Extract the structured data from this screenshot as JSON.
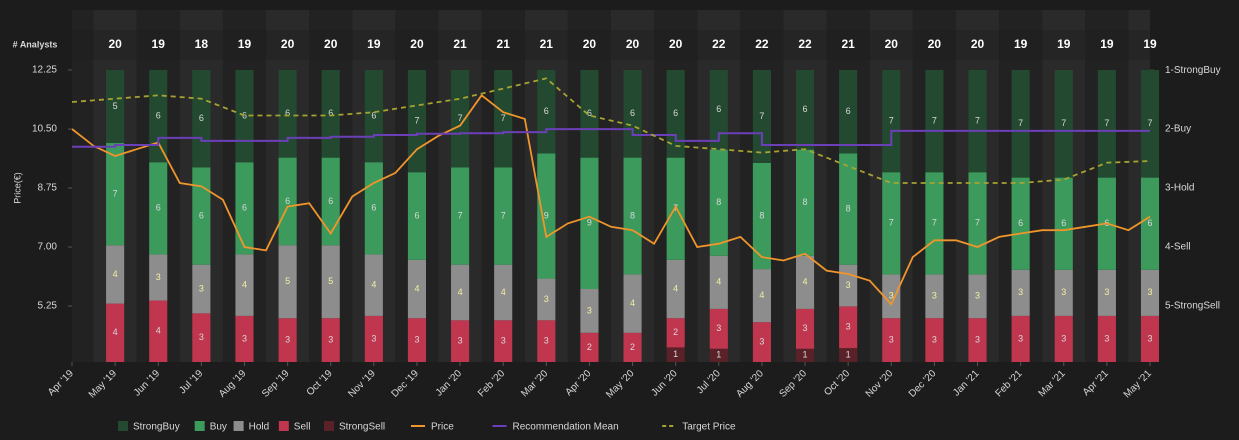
{
  "chart_data": {
    "type": "bar",
    "y_label": "Price(€)",
    "analysts_label": "# Analysts",
    "categories": [
      "Apr '19",
      "May '19",
      "Jun '19",
      "Jul '19",
      "Aug '19",
      "Sep '19",
      "Oct '19",
      "Nov '19",
      "Dec '19",
      "Jan '20",
      "Feb '20",
      "Mar '20",
      "Apr '20",
      "May '20",
      "Jun '20",
      "Jul '20",
      "Aug '20",
      "Sep '20",
      "Oct '20",
      "Nov '20",
      "Dec '20",
      "Jan '21",
      "Feb '21",
      "Mar '21",
      "Apr '21",
      "May '21"
    ],
    "analysts": [
      null,
      20,
      19,
      18,
      19,
      20,
      20,
      19,
      20,
      21,
      21,
      21,
      20,
      20,
      20,
      22,
      22,
      22,
      21,
      20,
      20,
      20,
      19,
      19,
      19,
      19
    ],
    "series": [
      {
        "name": "StrongSell",
        "color": "#5a2228",
        "values": [
          null,
          0,
          0,
          0,
          0,
          0,
          0,
          0,
          0,
          0,
          0,
          0,
          0,
          0,
          1,
          1,
          0,
          1,
          1,
          0,
          0,
          0,
          0,
          0,
          0,
          0
        ]
      },
      {
        "name": "Sell",
        "color": "#c1364f",
        "values": [
          null,
          4,
          4,
          3,
          3,
          3,
          3,
          3,
          3,
          3,
          3,
          3,
          2,
          2,
          2,
          3,
          3,
          3,
          3,
          3,
          3,
          3,
          3,
          3,
          3,
          3
        ]
      },
      {
        "name": "Hold",
        "color": "#8d8d8d",
        "values": [
          null,
          4,
          3,
          3,
          4,
          5,
          5,
          4,
          4,
          4,
          4,
          3,
          3,
          4,
          4,
          4,
          4,
          4,
          3,
          3,
          3,
          3,
          3,
          3,
          3,
          3
        ]
      },
      {
        "name": "Buy",
        "color": "#3c9a5c",
        "values": [
          null,
          7,
          6,
          6,
          6,
          6,
          6,
          6,
          6,
          7,
          7,
          9,
          9,
          8,
          7,
          8,
          8,
          8,
          8,
          7,
          7,
          7,
          6,
          6,
          6,
          6
        ]
      },
      {
        "name": "StrongBuy",
        "color": "#234a30",
        "values": [
          null,
          5,
          6,
          6,
          6,
          6,
          6,
          6,
          7,
          7,
          7,
          6,
          6,
          6,
          6,
          6,
          7,
          6,
          6,
          7,
          7,
          7,
          7,
          7,
          7,
          7
        ]
      }
    ],
    "legend_order": [
      4,
      3,
      2,
      1,
      0
    ],
    "line_series": [
      {
        "name": "Price",
        "color": "#f0952c",
        "dash": false,
        "axis": "y",
        "values": [
          10.5,
          10.0,
          9.7,
          9.9,
          10.1,
          8.9,
          8.8,
          8.4,
          7.0,
          6.9,
          8.2,
          8.3,
          7.4,
          8.5,
          8.9,
          9.2,
          9.9,
          10.3,
          10.6,
          11.5,
          11.0,
          10.8,
          7.3,
          7.7,
          7.9,
          7.6,
          7.5,
          7.1,
          8.2,
          7.0,
          7.1,
          7.3,
          6.7,
          6.6,
          6.8,
          6.3,
          6.2,
          6.0,
          5.3,
          6.7,
          7.2,
          7.2,
          7.0,
          7.3,
          7.4,
          7.5,
          7.5,
          7.6,
          7.7,
          7.5,
          7.9
        ]
      },
      {
        "name": "Recommendation Mean",
        "color": "#6b3fb8",
        "dash": false,
        "axis": "y2",
        "values": [
          2.3,
          2.27,
          2.15,
          2.2,
          2.2,
          2.15,
          2.13,
          2.1,
          2.08,
          2.07,
          2.05,
          2.0,
          2.0,
          2.1,
          2.2,
          2.07,
          2.27,
          2.27,
          2.27,
          2.03,
          2.03,
          2.03,
          2.03,
          2.03,
          2.03,
          2.03
        ]
      },
      {
        "name": "Target Price",
        "color": "#a7a232",
        "dash": true,
        "axis": "y",
        "values": [
          11.3,
          11.4,
          11.5,
          11.4,
          10.9,
          10.9,
          10.9,
          11.0,
          11.2,
          11.4,
          11.7,
          12.0,
          10.9,
          10.6,
          10.0,
          9.9,
          9.8,
          9.9,
          9.4,
          8.9,
          8.9,
          8.9,
          8.9,
          9.0,
          9.5,
          9.55
        ]
      }
    ],
    "ylim": [
      3.59,
      14.03
    ],
    "yticks": [
      {
        "value": 5.25,
        "label": "5.25"
      },
      {
        "value": 7,
        "label": "7.00"
      },
      {
        "value": 8.75,
        "label": "8.75"
      },
      {
        "value": 10.5,
        "label": "10.50"
      },
      12.25
    ],
    "y2lim": [
      5.95,
      -0.02
    ],
    "y2ticks": [
      {
        "value": 1,
        "label": "1-StrongBuy"
      },
      {
        "value": 2,
        "label": "2-Buy"
      },
      {
        "value": 3,
        "label": "3-Hold"
      },
      {
        "value": 4,
        "label": "4-Sell"
      },
      {
        "value": 5,
        "label": "5-StrongSell"
      }
    ]
  }
}
